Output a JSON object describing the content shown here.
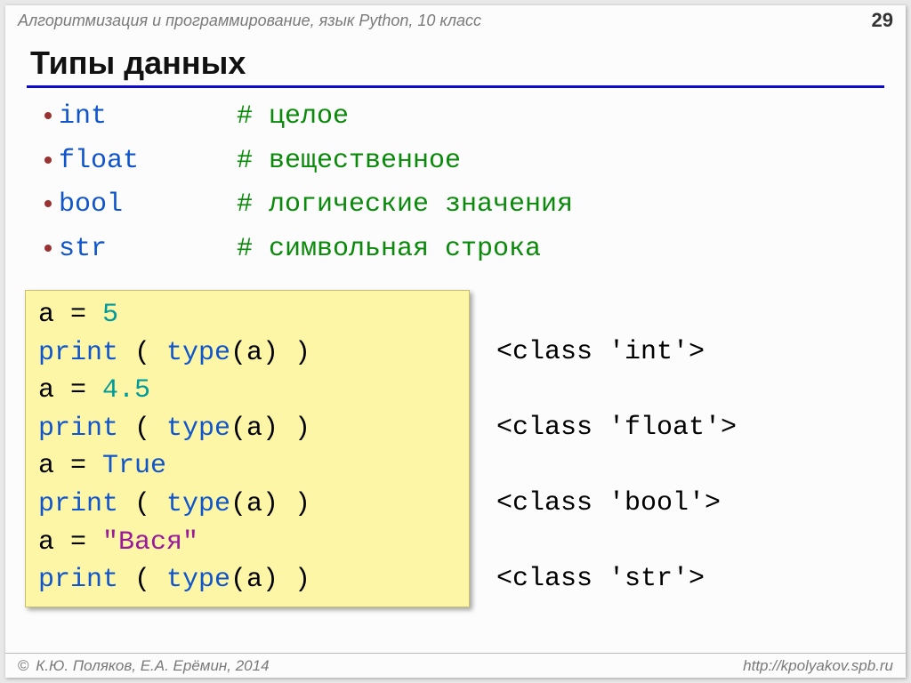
{
  "header": {
    "course": "Алгоритмизация и программирование, язык Python, 10 класс",
    "page": "29"
  },
  "title": "Типы данных",
  "bullets": [
    {
      "keyword": "int",
      "comment": "# целое"
    },
    {
      "keyword": "float",
      "comment": "# вещественное"
    },
    {
      "keyword": "bool",
      "comment": "# логические значения"
    },
    {
      "keyword": "str",
      "comment": "# символьная строка"
    }
  ],
  "code": {
    "lines": [
      [
        {
          "t": "a",
          "c": "c-black"
        },
        {
          "t": " = ",
          "c": "c-black"
        },
        {
          "t": "5",
          "c": "c-teal"
        }
      ],
      [
        {
          "t": "print",
          "c": "c-blue"
        },
        {
          "t": " ( ",
          "c": "c-black"
        },
        {
          "t": "type",
          "c": "c-blue"
        },
        {
          "t": "(a) )",
          "c": "c-black"
        }
      ],
      [
        {
          "t": "a",
          "c": "c-black"
        },
        {
          "t": " = ",
          "c": "c-black"
        },
        {
          "t": "4.5",
          "c": "c-teal"
        }
      ],
      [
        {
          "t": "print",
          "c": "c-blue"
        },
        {
          "t": " ( ",
          "c": "c-black"
        },
        {
          "t": "type",
          "c": "c-blue"
        },
        {
          "t": "(a) )",
          "c": "c-black"
        }
      ],
      [
        {
          "t": "a",
          "c": "c-black"
        },
        {
          "t": " = ",
          "c": "c-black"
        },
        {
          "t": "True",
          "c": "c-blue"
        }
      ],
      [
        {
          "t": "print",
          "c": "c-blue"
        },
        {
          "t": " ( ",
          "c": "c-black"
        },
        {
          "t": "type",
          "c": "c-blue"
        },
        {
          "t": "(a) )",
          "c": "c-black"
        }
      ],
      [
        {
          "t": "a",
          "c": "c-black"
        },
        {
          "t": " = ",
          "c": "c-black"
        },
        {
          "t": "\"Вася\"",
          "c": "c-purple"
        }
      ],
      [
        {
          "t": "print",
          "c": "c-blue"
        },
        {
          "t": " ( ",
          "c": "c-black"
        },
        {
          "t": "type",
          "c": "c-blue"
        },
        {
          "t": "(a) )",
          "c": "c-black"
        }
      ]
    ],
    "outputs": [
      "<class 'int'>",
      "<class 'float'>",
      "<class 'bool'>",
      "<class 'str'>"
    ]
  },
  "footer": {
    "left": "К.Ю. Поляков, Е.А. Ерёмин, 2014",
    "right": "http://kpolyakov.spb.ru"
  },
  "colors": {
    "rule": "#0a0ad0",
    "bullet_dot": "#993333",
    "keyword": "#1055cc",
    "comment": "#0a8a0a",
    "codebox_bg": "#fdf6a7",
    "teal": "#009a9a",
    "purple": "#9a1a9a",
    "header_text": "#7a7a7a"
  }
}
